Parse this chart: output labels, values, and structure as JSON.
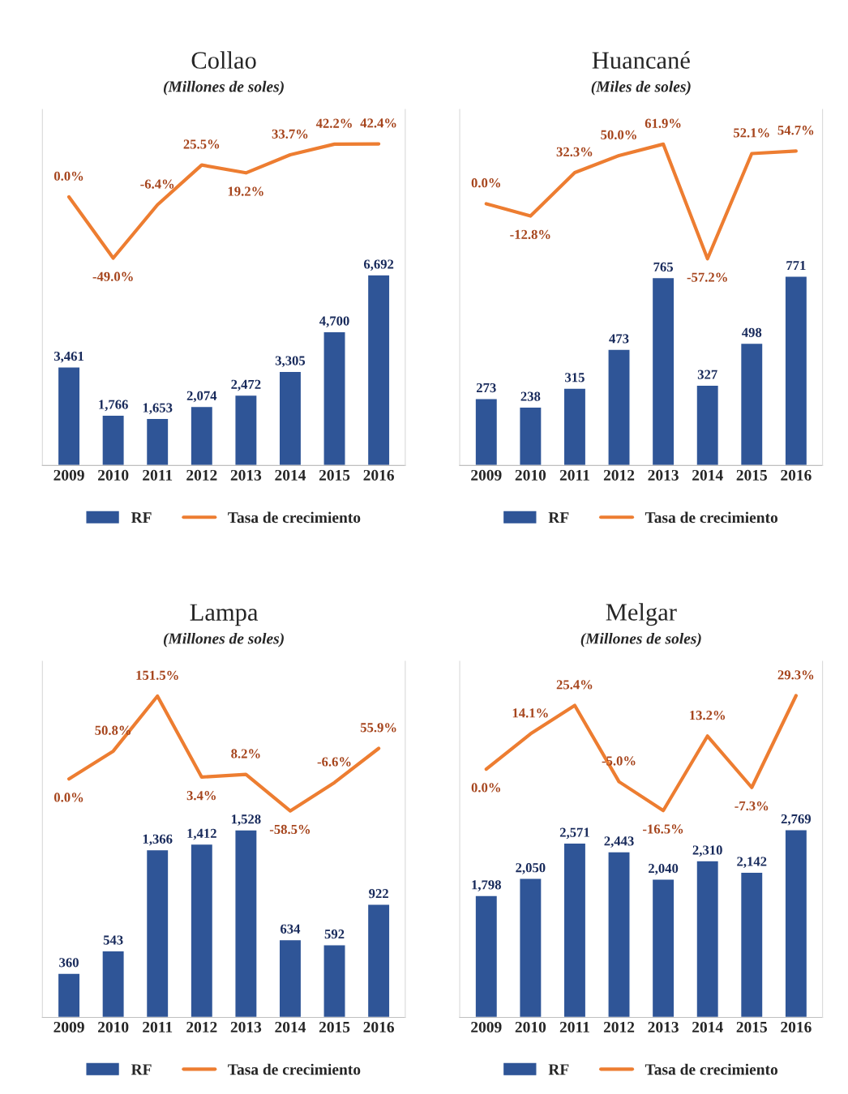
{
  "chart_data": [
    {
      "type": "bar",
      "title": "Collao",
      "subtitle": "(Millones de soles)",
      "ylim": [
        0,
        12500
      ],
      "y2lim": [
        -215,
        70
      ],
      "categories": [
        "2009",
        "2010",
        "2011",
        "2012",
        "2013",
        "2014",
        "2015",
        "2016"
      ],
      "legend": "bottom",
      "tick_labels": "x",
      "grid": false,
      "series": [
        {
          "name": "RF",
          "color": "#2f5597",
          "values": [
            3461,
            1766,
            1653,
            2074,
            2472,
            3305,
            4700,
            6692
          ],
          "value_labels": [
            "3,461",
            "1,766",
            "1,653",
            "2,074",
            "2,472",
            "3,305",
            "4,700",
            "6,692"
          ]
        },
        {
          "name": "Tasa de crecimiento",
          "type": "line",
          "axis": "y2",
          "color": "#ed7d31",
          "values": [
            0.0,
            -49.0,
            -6.4,
            25.5,
            19.2,
            33.7,
            42.2,
            42.4
          ],
          "value_labels": [
            "0.0%",
            "-49.0%",
            "-6.4%",
            "25.5%",
            "19.2%",
            "33.7%",
            "42.2%",
            "42.4%"
          ]
        }
      ]
    },
    {
      "type": "bar",
      "title": "Huancané",
      "subtitle": "(Miles de soles)",
      "ylim": [
        0,
        1450
      ],
      "y2lim": [
        -272,
        98
      ],
      "categories": [
        "2009",
        "2010",
        "2011",
        "2012",
        "2013",
        "2014",
        "2015",
        "2016"
      ],
      "legend": "bottom",
      "tick_labels": "x",
      "grid": false,
      "series": [
        {
          "name": "RF",
          "color": "#2f5597",
          "values": [
            273,
            238,
            315,
            473,
            765,
            327,
            498,
            771
          ],
          "value_labels": [
            "273",
            "238",
            "315",
            "473",
            "765",
            "327",
            "498",
            "771"
          ]
        },
        {
          "name": "Tasa de crecimiento",
          "type": "line",
          "axis": "y2",
          "color": "#ed7d31",
          "values": [
            0.0,
            -12.8,
            32.3,
            50.0,
            61.9,
            -57.2,
            52.1,
            54.7
          ],
          "value_labels": [
            "0.0%",
            "-12.8%",
            "32.3%",
            "50.0%",
            "61.9%",
            "-57.2%",
            "52.1%",
            "54.7%"
          ]
        }
      ]
    },
    {
      "type": "bar",
      "title": "Lampa",
      "subtitle": "(Millones de soles)",
      "ylim": [
        0,
        2900
      ],
      "y2lim": [
        -436,
        215
      ],
      "categories": [
        "2009",
        "2010",
        "2011",
        "2012",
        "2013",
        "2014",
        "2015",
        "2016"
      ],
      "legend": "bottom",
      "tick_labels": "x",
      "grid": false,
      "series": [
        {
          "name": "RF",
          "color": "#2f5597",
          "values": [
            360,
            543,
            1366,
            1412,
            1528,
            634,
            592,
            922
          ],
          "value_labels": [
            "360",
            "543",
            "1,366",
            "1,412",
            "1,528",
            "634",
            "592",
            "922"
          ]
        },
        {
          "name": "Tasa de crecimiento",
          "type": "line",
          "axis": "y2",
          "color": "#ed7d31",
          "values": [
            0.0,
            50.8,
            151.5,
            3.4,
            8.2,
            -58.5,
            -6.6,
            55.9
          ],
          "value_labels": [
            "0.0%",
            "50.8%",
            "151.5%",
            "3.4%",
            "8.2%",
            "-58.5%",
            "-6.6%",
            "55.9%"
          ]
        }
      ]
    },
    {
      "type": "bar",
      "title": "Melgar",
      "subtitle": "(Millones de soles)",
      "ylim": [
        0,
        5250
      ],
      "y2lim": [
        -99,
        43
      ],
      "categories": [
        "2009",
        "2010",
        "2011",
        "2012",
        "2013",
        "2014",
        "2015",
        "2016"
      ],
      "legend": "bottom",
      "tick_labels": "x",
      "grid": false,
      "series": [
        {
          "name": "RF",
          "color": "#2f5597",
          "values": [
            1798,
            2050,
            2571,
            2443,
            2040,
            2310,
            2142,
            2769
          ],
          "value_labels": [
            "1,798",
            "2,050",
            "2,571",
            "2,443",
            "2,040",
            "2,310",
            "2,142",
            "2,769"
          ]
        },
        {
          "name": "Tasa de crecimiento",
          "type": "line",
          "axis": "y2",
          "color": "#ed7d31",
          "values": [
            0.0,
            14.1,
            25.4,
            -5.0,
            -16.5,
            13.2,
            -7.3,
            29.3
          ],
          "value_labels": [
            "0.0%",
            "14.1%",
            "25.4%",
            "-5.0%",
            "-16.5%",
            "13.2%",
            "-7.3%",
            "29.3%"
          ]
        }
      ]
    }
  ]
}
